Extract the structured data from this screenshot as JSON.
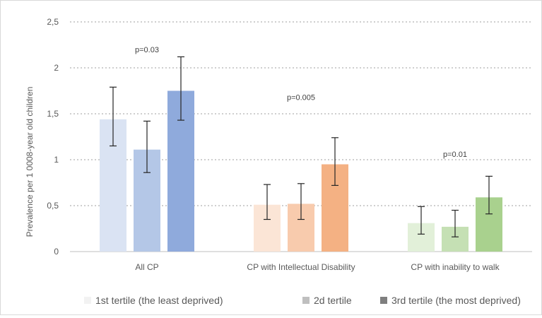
{
  "chart_data": {
    "type": "bar",
    "title": "",
    "xlabel": "",
    "ylabel": "Prevalence per 1 0008-year old children",
    "ylim": [
      0,
      2.5
    ],
    "yticks": [
      "0",
      "0,5",
      "1",
      "1,5",
      "2",
      "2,5"
    ],
    "ytick_values": [
      0,
      0.5,
      1,
      1.5,
      2,
      2.5
    ],
    "grid": true,
    "legend_position": "bottom",
    "categories": [
      "All CP",
      "CP with Intellectual Disability",
      "CP with inability to walk"
    ],
    "series": [
      {
        "name": "1st tertile (the least deprived)",
        "values": [
          1.44,
          0.51,
          0.31
        ],
        "err_low": [
          1.15,
          0.35,
          0.19
        ],
        "err_high": [
          1.79,
          0.73,
          0.49
        ]
      },
      {
        "name": "2d tertile",
        "values": [
          1.11,
          0.52,
          0.27
        ],
        "err_low": [
          0.86,
          0.35,
          0.16
        ],
        "err_high": [
          1.42,
          0.74,
          0.45
        ]
      },
      {
        "name": "3rd tertile (the most deprived)",
        "values": [
          1.75,
          0.95,
          0.59
        ],
        "err_low": [
          1.43,
          0.72,
          0.41
        ],
        "err_high": [
          2.12,
          1.24,
          0.82
        ]
      }
    ],
    "bar_colors": [
      [
        "#dae3f3",
        "#fbe5d6",
        "#e2f0d9"
      ],
      [
        "#b4c7e7",
        "#f8cbad",
        "#c5e0b4"
      ],
      [
        "#8faadc",
        "#f4b183",
        "#a9d18e"
      ]
    ],
    "legend_swatch_colors": [
      "#f2f2f2",
      "#bfbfbf",
      "#7f7f7f"
    ],
    "annotations": [
      {
        "text": "p=0.03",
        "category": 0,
        "y": 2.17
      },
      {
        "text": "p=0.005",
        "category": 1,
        "y": 1.65
      },
      {
        "text": "p=0.01",
        "category": 2,
        "y": 1.03
      }
    ]
  }
}
